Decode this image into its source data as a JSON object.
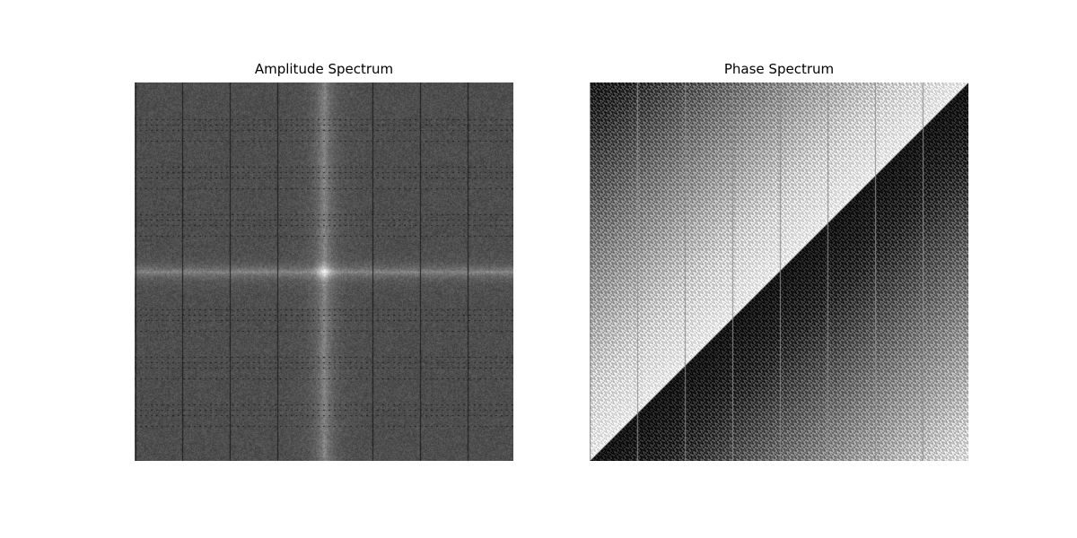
{
  "panels": {
    "amplitude": {
      "title": "Amplitude Spectrum"
    },
    "phase": {
      "title": "Phase Spectrum"
    }
  },
  "colormap": "gray"
}
